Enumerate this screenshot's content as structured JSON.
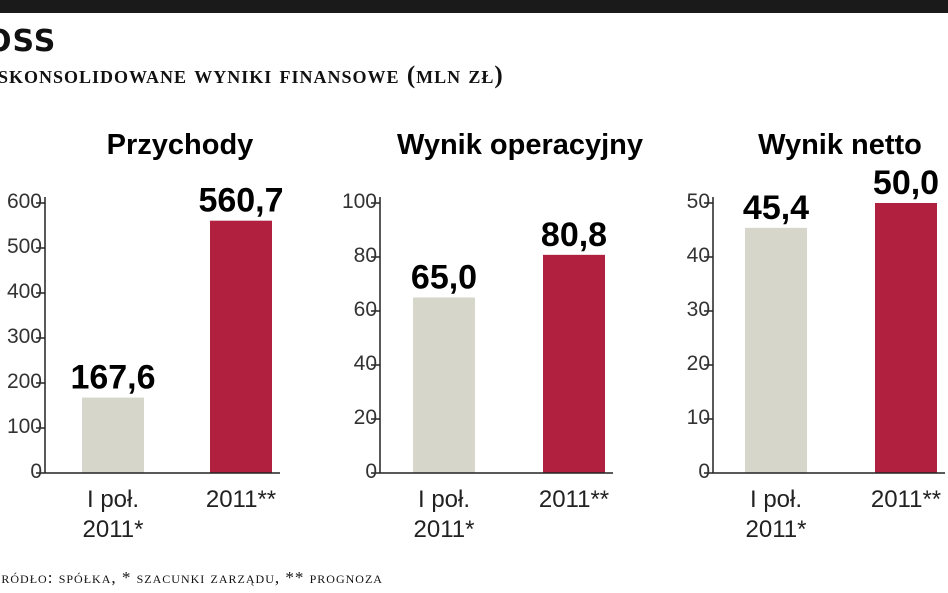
{
  "header": {
    "brand": "OSS",
    "subtitle": "Skonsolidowane wyniki finansowe (mln zł)"
  },
  "footer": {
    "source": "Źródło: spółka,  * szacunki zarządu, ** prognoza"
  },
  "colors": {
    "bar_first": "#d6d6cb",
    "bar_second": "#b2203f",
    "axis": "#222222",
    "top_bar": "#1a1a1a"
  },
  "chart_data": [
    {
      "type": "bar",
      "title": "Przychody",
      "categories": [
        "I poł. 2011*",
        "2011**"
      ],
      "values": [
        167.6,
        560.7
      ],
      "value_labels": [
        "167,6",
        "560,7"
      ],
      "yticks": [
        "0",
        "100",
        "200",
        "300",
        "400",
        "500",
        "600"
      ],
      "ylim": [
        0,
        600
      ],
      "grid": false
    },
    {
      "type": "bar",
      "title": "Wynik operacyjny",
      "categories": [
        "I poł. 2011*",
        "2011**"
      ],
      "values": [
        65.0,
        80.8
      ],
      "value_labels": [
        "65,0",
        "80,8"
      ],
      "yticks": [
        "0",
        "20",
        "40",
        "60",
        "80",
        "100"
      ],
      "ylim": [
        0,
        100
      ],
      "grid": false
    },
    {
      "type": "bar",
      "title": "Wynik netto",
      "categories": [
        "I poł. 2011*",
        "2011**"
      ],
      "values": [
        45.4,
        50.0
      ],
      "value_labels": [
        "45,4",
        "50,0"
      ],
      "yticks": [
        "0",
        "10",
        "20",
        "30",
        "40",
        "50"
      ],
      "ylim": [
        0,
        50
      ],
      "grid": false
    }
  ]
}
